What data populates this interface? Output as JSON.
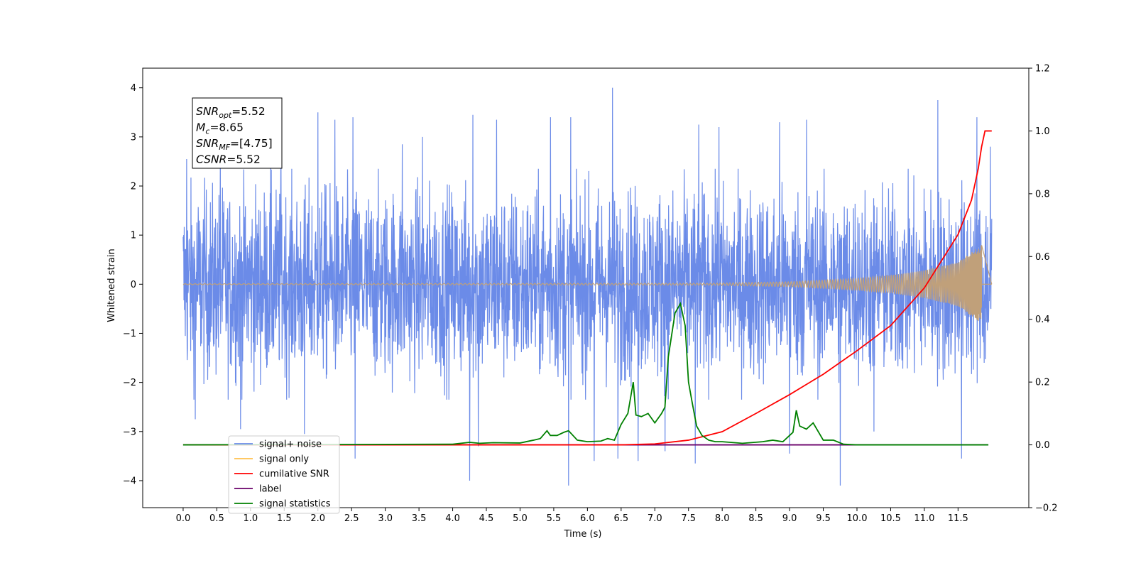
{
  "chart_data": {
    "type": "line",
    "xlabel": "Time (s)",
    "ylabel": "Whitened strain",
    "xlim": [
      -0.6,
      12.55
    ],
    "ylim": [
      -4.55,
      4.4
    ],
    "ylim_right": [
      -0.2,
      1.2
    ],
    "x_ticks": [
      0.0,
      0.5,
      1.0,
      1.5,
      2.0,
      2.5,
      3.0,
      3.5,
      4.0,
      4.5,
      5.0,
      5.5,
      6.0,
      6.5,
      7.0,
      7.5,
      8.0,
      8.5,
      9.0,
      9.5,
      10.0,
      10.5,
      11.0,
      11.5
    ],
    "x_tick_labels": [
      "0.0",
      "0.5",
      "1.0",
      "1.5",
      "2.0",
      "2.5",
      "3.0",
      "3.5",
      "4.0",
      "4.5",
      "5.0",
      "5.5",
      "6.0",
      "6.5",
      "7.0",
      "7.5",
      "8.0",
      "8.5",
      "9.0",
      "9.5",
      "10.0",
      "10.5",
      "11.0",
      "11.5"
    ],
    "y_ticks": [
      -4,
      -3,
      -2,
      -1,
      0,
      1,
      2,
      3,
      4
    ],
    "y_tick_labels": [
      "−4",
      "−3",
      "−2",
      "−1",
      "0",
      "1",
      "2",
      "3",
      "4"
    ],
    "y_right_ticks": [
      -0.2,
      0.0,
      0.2,
      0.4,
      0.6,
      0.8,
      1.0,
      1.2
    ],
    "y_right_tick_labels": [
      "−0.2",
      "0.0",
      "0.2",
      "0.4",
      "0.6",
      "0.8",
      "1.0",
      "1.2"
    ],
    "legend_position": "lower-left",
    "legend": [
      {
        "label": "signal+ noise",
        "color": "#6b8be8"
      },
      {
        "label": "signal only",
        "color": "#ffc04d"
      },
      {
        "label": "cumilative SNR",
        "color": "#ff0000"
      },
      {
        "label": "label",
        "color": "#6a006a"
      },
      {
        "label": "signal statistics",
        "color": "#008000"
      }
    ],
    "annotation": {
      "lines": [
        {
          "name": "SNR",
          "sub": "opt",
          "value": "=5.52"
        },
        {
          "name": "M",
          "sub": "c",
          "value": "=8.65"
        },
        {
          "name": "SNR",
          "sub": "MF",
          "value": "=[4.75]"
        },
        {
          "name": "CSNR",
          "sub": "",
          "value": "=5.52"
        }
      ]
    },
    "series": [
      {
        "name": "signal+ noise",
        "axis": "left",
        "style": "noise",
        "x_range": [
          0.0,
          12.0
        ],
        "color": "#6b8be8",
        "typical_range": [
          -2.2,
          2.2
        ],
        "spikes": [
          {
            "x": 0.05,
            "y": 2.55
          },
          {
            "x": 0.18,
            "y": -2.75
          },
          {
            "x": 0.55,
            "y": 2.7
          },
          {
            "x": 0.85,
            "y": -2.95
          },
          {
            "x": 1.3,
            "y": 2.95
          },
          {
            "x": 1.45,
            "y": 3.0
          },
          {
            "x": 1.8,
            "y": -3.05
          },
          {
            "x": 2.0,
            "y": 3.5
          },
          {
            "x": 2.25,
            "y": 3.35
          },
          {
            "x": 2.52,
            "y": 3.4
          },
          {
            "x": 2.55,
            "y": -3.55
          },
          {
            "x": 3.25,
            "y": 2.85
          },
          {
            "x": 3.55,
            "y": 3.0
          },
          {
            "x": 4.25,
            "y": -4.0
          },
          {
            "x": 4.3,
            "y": 3.45
          },
          {
            "x": 4.38,
            "y": -3.3
          },
          {
            "x": 4.65,
            "y": 3.35
          },
          {
            "x": 5.45,
            "y": 3.4
          },
          {
            "x": 5.72,
            "y": -4.1
          },
          {
            "x": 5.75,
            "y": 3.4
          },
          {
            "x": 6.1,
            "y": -3.6
          },
          {
            "x": 6.37,
            "y": 4.0
          },
          {
            "x": 6.45,
            "y": -3.55
          },
          {
            "x": 6.75,
            "y": -3.6
          },
          {
            "x": 7.15,
            "y": -3.4
          },
          {
            "x": 7.6,
            "y": -3.65
          },
          {
            "x": 7.65,
            "y": 3.25
          },
          {
            "x": 7.95,
            "y": 3.2
          },
          {
            "x": 8.85,
            "y": 3.3
          },
          {
            "x": 9.0,
            "y": -3.45
          },
          {
            "x": 9.25,
            "y": 3.35
          },
          {
            "x": 9.75,
            "y": -4.1
          },
          {
            "x": 10.25,
            "y": -3.0
          },
          {
            "x": 11.2,
            "y": 3.75
          },
          {
            "x": 11.55,
            "y": -3.55
          },
          {
            "x": 11.78,
            "y": 3.4
          },
          {
            "x": 11.98,
            "y": 2.8
          }
        ]
      },
      {
        "name": "signal only",
        "axis": "left",
        "style": "chirp",
        "color": "#c0a07a",
        "x_range": [
          0.0,
          11.85
        ],
        "peak_time": 11.85,
        "envelope_points": [
          [
            0.0,
            0.01
          ],
          [
            7.8,
            0.02
          ],
          [
            9.0,
            0.05
          ],
          [
            10.0,
            0.12
          ],
          [
            10.5,
            0.18
          ],
          [
            11.0,
            0.28
          ],
          [
            11.5,
            0.45
          ],
          [
            11.8,
            0.75
          ],
          [
            11.85,
            0.8
          ]
        ]
      },
      {
        "name": "cumilative SNR",
        "axis": "right",
        "color": "#ff0000",
        "x": [
          0.0,
          6.5,
          7.0,
          7.5,
          8.0,
          8.5,
          9.0,
          9.5,
          10.0,
          10.5,
          11.0,
          11.5,
          11.7,
          11.8,
          11.85,
          11.9,
          12.0
        ],
        "y": [
          0.0,
          0.0,
          0.003,
          0.015,
          0.042,
          0.1,
          0.16,
          0.225,
          0.3,
          0.38,
          0.5,
          0.67,
          0.78,
          0.88,
          0.95,
          1.0,
          1.0
        ]
      },
      {
        "name": "label",
        "axis": "right",
        "color": "#6a006a",
        "x": [
          0.0,
          11.95
        ],
        "y": [
          0.0,
          0.0
        ]
      },
      {
        "name": "signal statistics",
        "axis": "right",
        "color": "#008000",
        "x": [
          0.0,
          4.0,
          4.25,
          4.4,
          4.6,
          5.0,
          5.2,
          5.3,
          5.4,
          5.45,
          5.55,
          5.65,
          5.72,
          5.85,
          6.0,
          6.2,
          6.3,
          6.4,
          6.5,
          6.6,
          6.68,
          6.72,
          6.8,
          6.9,
          7.0,
          7.1,
          7.15,
          7.2,
          7.25,
          7.3,
          7.38,
          7.45,
          7.5,
          7.55,
          7.62,
          7.7,
          7.8,
          7.9,
          8.0,
          8.3,
          8.6,
          8.75,
          8.9,
          9.0,
          9.05,
          9.1,
          9.15,
          9.25,
          9.35,
          9.5,
          9.65,
          9.8,
          10.0,
          11.95
        ],
        "y": [
          0.0,
          0.002,
          0.008,
          0.005,
          0.007,
          0.006,
          0.015,
          0.02,
          0.045,
          0.03,
          0.03,
          0.04,
          0.045,
          0.015,
          0.01,
          0.012,
          0.02,
          0.015,
          0.065,
          0.1,
          0.2,
          0.095,
          0.09,
          0.1,
          0.07,
          0.1,
          0.12,
          0.28,
          0.35,
          0.42,
          0.45,
          0.38,
          0.2,
          0.14,
          0.06,
          0.03,
          0.015,
          0.01,
          0.01,
          0.005,
          0.01,
          0.015,
          0.01,
          0.03,
          0.04,
          0.11,
          0.06,
          0.05,
          0.07,
          0.015,
          0.015,
          0.002,
          0.0,
          0.0
        ]
      }
    ]
  }
}
